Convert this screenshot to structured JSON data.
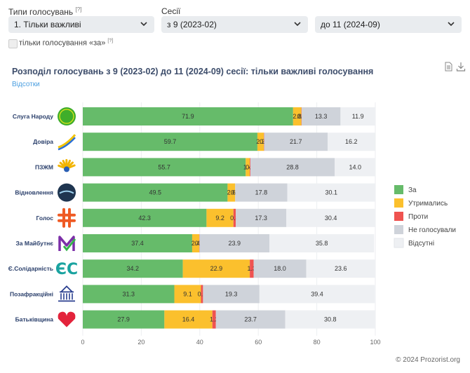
{
  "filters": {
    "type_label": "Типи голосувань",
    "type_note": "[?]",
    "type_value": "1. Тільки важливі",
    "session_label": "Сесії",
    "session_from": "з 9 (2023-02)",
    "session_to": "до 11 (2024-09)",
    "only_for_label": "тільки голосування «за»",
    "only_for_note": "[?]"
  },
  "title": "Розподіл голосувань з 9 (2023-02) до 11 (2024-09) сесії: тільки важливі голосування",
  "sublink": "Відсотки",
  "footer": "© 2024 Prozorist.org",
  "icons": {
    "file": "document-icon",
    "download": "download-icon",
    "chevron": "chevron-down-icon"
  },
  "chart_data": {
    "type": "bar",
    "orientation": "horizontal",
    "stacked": true,
    "categories": [
      "Слуга Народу",
      "Довіра",
      "ПЗЖМ",
      "Відновлення",
      "Голос",
      "За Майбутнє",
      "Є.Солідарність",
      "Позафракційні",
      "Батьківщина"
    ],
    "logo_icons": [
      "sluha-narodu-logo",
      "dovira-logo",
      "pzzhm-logo",
      "vidnovlennia-logo",
      "holos-logo",
      "za-maibutnie-logo",
      "yes-logo",
      "pozafraktsiini-logo",
      "batkivshchyna-logo"
    ],
    "series": [
      {
        "name": "За",
        "color": "#66bb6a",
        "values": [
          71.9,
          59.7,
          55.7,
          49.5,
          42.3,
          37.4,
          34.2,
          31.3,
          27.9
        ]
      },
      {
        "name": "Утримались",
        "color": "#fbc02d",
        "values": [
          2.8,
          2.2,
          1.4,
          2.6,
          9.2,
          2.4,
          22.9,
          9.1,
          16.4
        ]
      },
      {
        "name": "Проти",
        "color": "#ef5350",
        "values": [
          0.1,
          0.1,
          0.2,
          0.0,
          0.8,
          0.1,
          1.3,
          0.7,
          1.2
        ]
      },
      {
        "name": "Не голосували",
        "color": "#cfd3da",
        "values": [
          13.3,
          21.7,
          28.8,
          17.8,
          17.3,
          23.9,
          18.0,
          19.3,
          23.7
        ]
      },
      {
        "name": "Відсутні",
        "color": "#eef0f3",
        "values": [
          11.9,
          16.2,
          14.0,
          30.1,
          30.4,
          35.8,
          23.6,
          39.4,
          30.8
        ]
      }
    ],
    "labels": [
      [
        "71.9",
        "2.8",
        "0.1",
        "13.3",
        "11.9"
      ],
      [
        "59.7",
        "2.2",
        "0.1",
        "21.7",
        "16.2"
      ],
      [
        "55.7",
        "1.4",
        "0.2",
        "28.8",
        "14.0"
      ],
      [
        "49.5",
        "2.6",
        "0.0",
        "17.8",
        "30.1"
      ],
      [
        "42.3",
        "9.2",
        "0.8",
        "17.3",
        "30.4"
      ],
      [
        "37.4",
        "2.4",
        "0.1",
        "23.9",
        "35.8"
      ],
      [
        "34.2",
        "22.9",
        "1.3",
        "18.0",
        "23.6"
      ],
      [
        "31.3",
        "9.1",
        "0.7",
        "19.3",
        "39.4"
      ],
      [
        "27.9",
        "16.4",
        "1.2",
        "23.7",
        "30.8"
      ]
    ],
    "xlim": [
      0,
      100
    ],
    "xticks": [
      "0",
      "20",
      "40",
      "60",
      "80",
      "100"
    ],
    "grid": true,
    "legend_position": "right"
  }
}
